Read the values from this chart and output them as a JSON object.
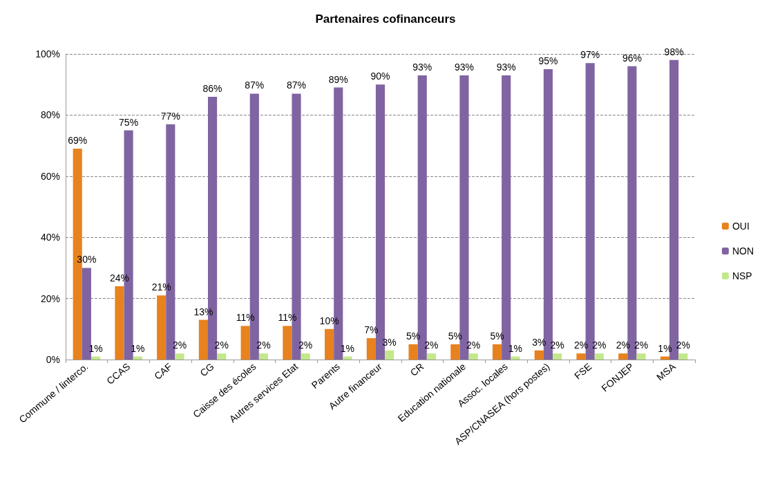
{
  "chart_data": {
    "type": "bar",
    "title": "Partenaires cofinanceurs",
    "categories": [
      "Commune / linterco.",
      "CCAS",
      "CAF",
      "CG",
      "Caisse des écoles",
      "Autres services Etat",
      "Parents",
      "Autre financeur",
      "CR",
      "Education nationale",
      "Assoc. locales",
      "ASP/CNASEA (hors postes)",
      "FSE",
      "FONJEP",
      "MSA"
    ],
    "series": [
      {
        "name": "OUI",
        "color": "#e8821e",
        "values": [
          69,
          24,
          21,
          13,
          11,
          11,
          10,
          7,
          5,
          5,
          5,
          3,
          2,
          2,
          1
        ],
        "value_labels": [
          "69%",
          "24%",
          "21%",
          "13%",
          "11%",
          "11%",
          "10%",
          "7%",
          "5%",
          "5%",
          "5%",
          "3%",
          "2%",
          "2%",
          "1%"
        ]
      },
      {
        "name": "NON",
        "color": "#8064a2",
        "values": [
          30,
          75,
          77,
          86,
          87,
          87,
          89,
          90,
          93,
          93,
          93,
          95,
          97,
          96,
          98
        ],
        "value_labels": [
          "30%",
          "75%",
          "77%",
          "86%",
          "87%",
          "87%",
          "89%",
          "90%",
          "93%",
          "93%",
          "93%",
          "95%",
          "97%",
          "96%",
          "98%"
        ]
      },
      {
        "name": "NSP",
        "color": "#c3e88c",
        "values": [
          1,
          1,
          2,
          2,
          2,
          2,
          1,
          3,
          2,
          2,
          1,
          2,
          2,
          2,
          2
        ],
        "value_labels": [
          "1%",
          "1%",
          "2%",
          "2%",
          "2%",
          "2%",
          "1%",
          "3%",
          "2%",
          "2%",
          "1%",
          "2%",
          "2%",
          "2%",
          "2%"
        ]
      }
    ],
    "ylim": [
      0,
      100
    ],
    "yticks": [
      {
        "value": 0,
        "label": "0%"
      },
      {
        "value": 20,
        "label": "20%"
      },
      {
        "value": 40,
        "label": "40%"
      },
      {
        "value": 60,
        "label": "60%"
      },
      {
        "value": 80,
        "label": "80%"
      },
      {
        "value": 100,
        "label": "100%"
      }
    ],
    "grid": "y",
    "legend": "right"
  }
}
